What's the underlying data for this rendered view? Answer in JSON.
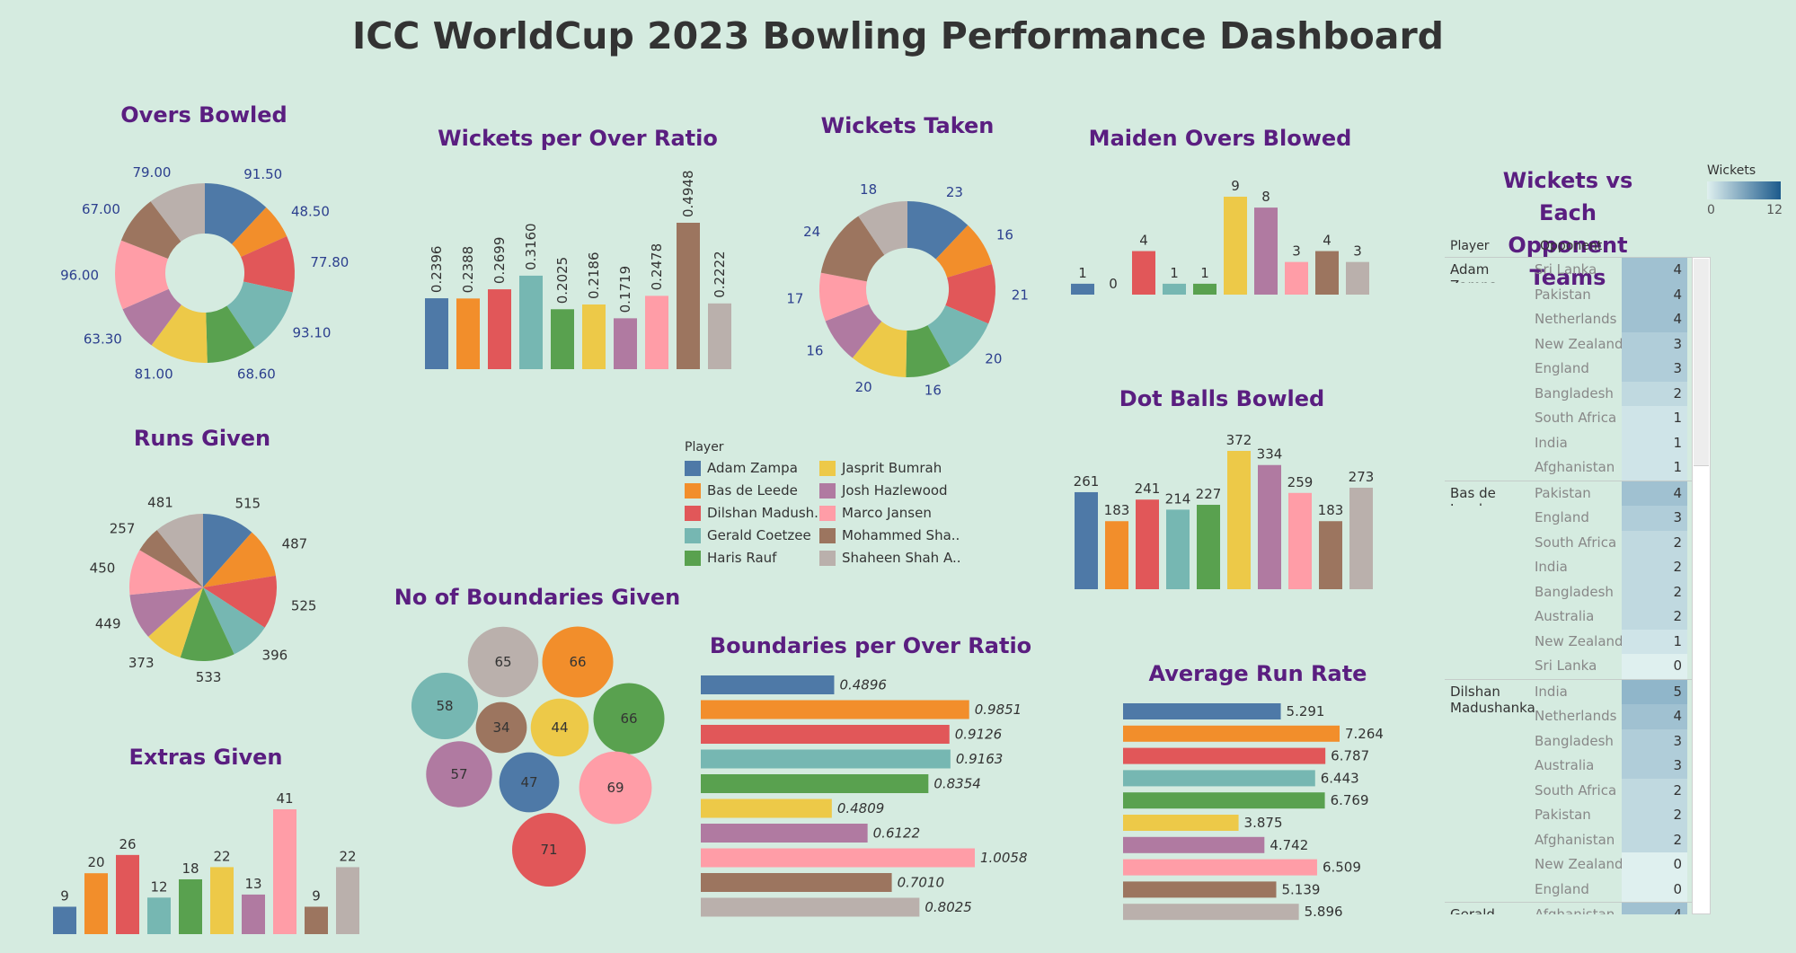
{
  "title": "ICC WorldCup 2023 Bowling Performance Dashboard",
  "colors": [
    "#4e79a7",
    "#f28e2b",
    "#e15759",
    "#76b7b2",
    "#59a14f",
    "#edc948",
    "#b07aa1",
    "#ff9da7",
    "#9c755f",
    "#bab0ac"
  ],
  "legend": {
    "title": "Player",
    "players": [
      "Adam Zampa",
      "Bas de Leede",
      "Dilshan Madush..",
      "Gerald Coetzee",
      "Haris Rauf",
      "Jasprit Bumrah",
      "Josh Hazlewood",
      "Marco Jansen",
      "Mohammed Sha..",
      "Shaheen Shah A.."
    ]
  },
  "chart_data": [
    {
      "id": "overs_bowled",
      "type": "pie",
      "donut": true,
      "title": "Overs Bowled",
      "labels": [
        "91.50",
        "48.50",
        "77.80",
        "93.10",
        "68.60",
        "81.00",
        "63.30",
        "96.00",
        "67.00",
        "79.00"
      ],
      "values": [
        91.5,
        48.5,
        77.8,
        93.1,
        68.6,
        81.0,
        63.3,
        96.0,
        67.0,
        79.0
      ]
    },
    {
      "id": "runs_given",
      "type": "pie",
      "donut": false,
      "title": "Runs Given",
      "labels": [
        "515",
        "487",
        "525",
        "396",
        "533",
        "373",
        "449",
        "450",
        "257",
        "481"
      ],
      "values": [
        515,
        487,
        525,
        396,
        533,
        373,
        449,
        450,
        257,
        481
      ]
    },
    {
      "id": "extras_given",
      "type": "bar",
      "title": "Extras Given",
      "labels": [
        "9",
        "20",
        "26",
        "12",
        "18",
        "22",
        "13",
        "41",
        "9",
        "22"
      ],
      "values": [
        9,
        20,
        26,
        12,
        18,
        22,
        13,
        41,
        9,
        22
      ]
    },
    {
      "id": "wickets_per_over",
      "type": "bar",
      "title": "Wickets per Over Ratio",
      "labels": [
        "0.2396",
        "0.2388",
        "0.2699",
        "0.3160",
        "0.2025",
        "0.2186",
        "0.1719",
        "0.2478",
        "0.4948",
        "0.2222"
      ],
      "values": [
        0.2396,
        0.2388,
        0.2699,
        0.316,
        0.2025,
        0.2186,
        0.1719,
        0.2478,
        0.4948,
        0.2222
      ]
    },
    {
      "id": "wickets_taken",
      "type": "pie",
      "donut": true,
      "title": "Wickets Taken",
      "labels": [
        "23",
        "16",
        "21",
        "20",
        "16",
        "20",
        "16",
        "17",
        "24",
        "18"
      ],
      "values": [
        23,
        16,
        21,
        20,
        16,
        20,
        16,
        17,
        24,
        18
      ]
    },
    {
      "id": "maiden_overs",
      "type": "bar",
      "title": "Maiden Overs Blowed",
      "labels": [
        "1",
        "0",
        "4",
        "1",
        "1",
        "9",
        "8",
        "3",
        "4",
        "3"
      ],
      "values": [
        1,
        0,
        4,
        1,
        1,
        9,
        8,
        3,
        4,
        3
      ]
    },
    {
      "id": "dot_balls",
      "type": "bar",
      "title": "Dot Balls Bowled",
      "labels": [
        "261",
        "183",
        "241",
        "214",
        "227",
        "372",
        "334",
        "259",
        "183",
        "273"
      ],
      "values": [
        261,
        183,
        241,
        214,
        227,
        372,
        334,
        259,
        183,
        273
      ]
    },
    {
      "id": "boundaries_given",
      "type": "bubble",
      "title": "No of Boundaries Given",
      "labels": [
        "47",
        "66",
        "71",
        "58",
        "66",
        "44",
        "57",
        "69",
        "34",
        "65"
      ],
      "values": [
        47,
        66,
        71,
        58,
        66,
        44,
        57,
        69,
        34,
        65
      ]
    },
    {
      "id": "boundaries_per_over",
      "type": "bar",
      "orientation": "horizontal",
      "title": "Boundaries per Over Ratio",
      "labels": [
        "0.4896",
        "0.9851",
        "0.9126",
        "0.9163",
        "0.8354",
        "0.4809",
        "0.6122",
        "1.0058",
        "0.7010",
        "0.8025"
      ],
      "values": [
        0.4896,
        0.9851,
        0.9126,
        0.9163,
        0.8354,
        0.4809,
        0.6122,
        1.0058,
        0.701,
        0.8025
      ]
    },
    {
      "id": "avg_run_rate",
      "type": "bar",
      "orientation": "horizontal",
      "title": "Average Run Rate",
      "labels": [
        "5.291",
        "7.264",
        "6.787",
        "6.443",
        "6.769",
        "3.875",
        "4.742",
        "6.509",
        "5.139",
        "5.896"
      ],
      "values": [
        5.291,
        7.264,
        6.787,
        6.443,
        6.769,
        3.875,
        4.742,
        6.509,
        5.139,
        5.896
      ]
    },
    {
      "id": "wickets_vs_opponents",
      "type": "table",
      "title": "Wickets vs Each Opponent Teams",
      "columns": [
        "Player",
        "Opponent"
      ],
      "color_legend": {
        "title": "Wickets",
        "min": "0",
        "max": "12",
        "min_value": 0,
        "max_value": 12
      },
      "groups": [
        {
          "player": "Adam Zampa",
          "rows": [
            {
              "opponent": "Sri Lanka",
              "wickets": "4"
            },
            {
              "opponent": "Pakistan",
              "wickets": "4"
            },
            {
              "opponent": "Netherlands",
              "wickets": "4"
            },
            {
              "opponent": "New Zealand",
              "wickets": "3"
            },
            {
              "opponent": "England",
              "wickets": "3"
            },
            {
              "opponent": "Bangladesh",
              "wickets": "2"
            },
            {
              "opponent": "South Africa",
              "wickets": "1"
            },
            {
              "opponent": "India",
              "wickets": "1"
            },
            {
              "opponent": "Afghanistan",
              "wickets": "1"
            }
          ]
        },
        {
          "player": "Bas de Leede",
          "rows": [
            {
              "opponent": "Pakistan",
              "wickets": "4"
            },
            {
              "opponent": "England",
              "wickets": "3"
            },
            {
              "opponent": "South Africa",
              "wickets": "2"
            },
            {
              "opponent": "India",
              "wickets": "2"
            },
            {
              "opponent": "Bangladesh",
              "wickets": "2"
            },
            {
              "opponent": "Australia",
              "wickets": "2"
            },
            {
              "opponent": "New Zealand",
              "wickets": "1"
            },
            {
              "opponent": "Sri Lanka",
              "wickets": "0"
            }
          ]
        },
        {
          "player": "Dilshan Madushanka",
          "rows": [
            {
              "opponent": "India",
              "wickets": "5"
            },
            {
              "opponent": "Netherlands",
              "wickets": "4"
            },
            {
              "opponent": "Bangladesh",
              "wickets": "3"
            },
            {
              "opponent": "Australia",
              "wickets": "3"
            },
            {
              "opponent": "South Africa",
              "wickets": "2"
            },
            {
              "opponent": "Pakistan",
              "wickets": "2"
            },
            {
              "opponent": "Afghanistan",
              "wickets": "2"
            },
            {
              "opponent": "New Zealand",
              "wickets": "0"
            },
            {
              "opponent": "England",
              "wickets": "0"
            }
          ]
        },
        {
          "player": "Gerald",
          "rows": [
            {
              "opponent": "Afghanistan",
              "wickets": "4"
            }
          ]
        }
      ]
    }
  ]
}
